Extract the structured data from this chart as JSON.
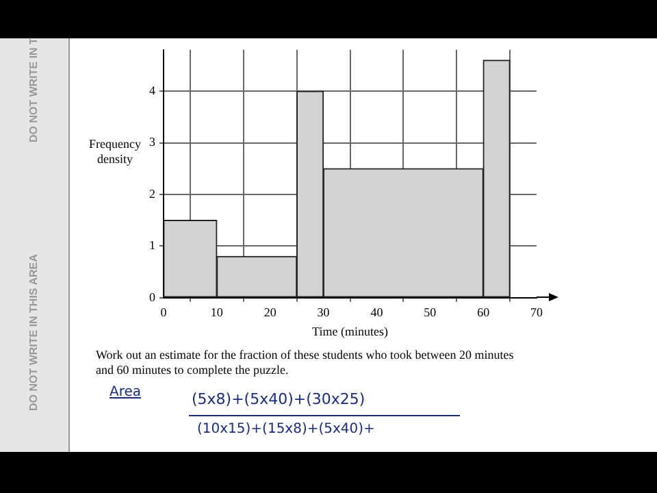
{
  "chart_data": {
    "type": "histogram",
    "xlabel": "Time (minutes)",
    "ylabel": "Frequency density",
    "bins": [
      0,
      10,
      25,
      30,
      60,
      65
    ],
    "values": [
      1.5,
      0.8,
      4,
      2.5,
      4.6
    ],
    "color": "#d3d3d3",
    "xlim": [
      0,
      70
    ],
    "xticks": [
      0,
      10,
      20,
      30,
      40,
      50,
      60,
      70
    ],
    "ylim": [
      0,
      4.8
    ],
    "yticks": [
      0,
      1,
      2,
      3,
      4
    ],
    "grid": true,
    "annotations": [
      "Work out an estimate for the fraction of these students who took between 20 minutes and 60 minutes to complete the puzzle.",
      "Area",
      "(5x8)+(5x40)+(30x25)",
      "(10x15)+(15x8)+(5x40)+",
      "DO NOT WRITE IN THIS AREA",
      "DO NOT WRITE IN T"
    ]
  }
}
